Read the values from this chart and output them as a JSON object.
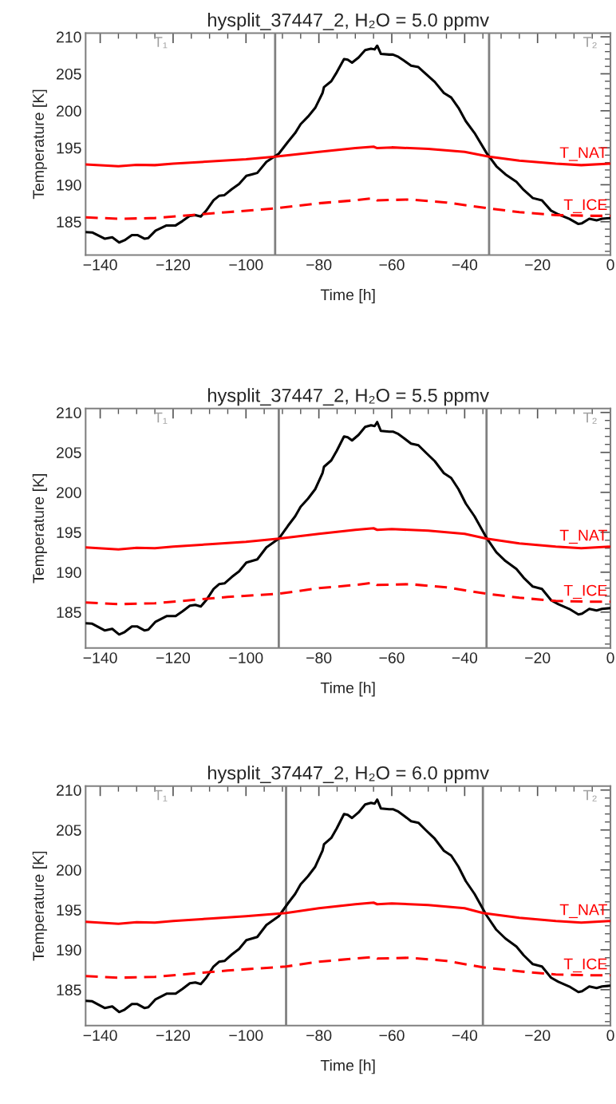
{
  "chart_data": [
    {
      "type": "line",
      "title": "hysplit_37447_2, H₂O = 5.0 ppmv",
      "xlabel": "Time [h]",
      "ylabel": "Temperature [K]",
      "xlim": [
        -144,
        0
      ],
      "ylim": [
        180.5,
        210.5
      ],
      "xticks": [
        {
          "value": -140,
          "label": "−140"
        },
        {
          "value": -120,
          "label": "−120"
        },
        {
          "value": -100,
          "label": "−100"
        },
        {
          "value": -80,
          "label": "−80"
        },
        {
          "value": -60,
          "label": "−60"
        },
        {
          "value": -40,
          "label": "−40"
        },
        {
          "value": -20,
          "label": "−20"
        },
        0
      ],
      "yticks": [
        185,
        190,
        195,
        200,
        205,
        210
      ],
      "grid": false,
      "legend": false,
      "marker": "none",
      "annotations": [
        "T₁",
        "T₂"
      ],
      "ref_lines": [
        {
          "axis": "x",
          "value": -92,
          "color": "#808080"
        },
        {
          "axis": "x",
          "value": -33.3,
          "color": "#808080"
        }
      ],
      "series": [
        {
          "color": "#000000",
          "line_style": "solid",
          "x": [
            -144,
            -142.2,
            -138.7,
            -136.7,
            -134.8,
            -133.3,
            -131.3,
            -129.8,
            -127.8,
            -126.8,
            -124.8,
            -121.8,
            -119.3,
            -117.4,
            -115.4,
            -113.9,
            -112.4,
            -110.9,
            -108.9,
            -107.4,
            -105.9,
            -103.9,
            -101.9,
            -99.9,
            -98.4,
            -96.9,
            -94.4,
            -91,
            -88.5,
            -86.5,
            -85,
            -83,
            -81,
            -79,
            -78.6,
            -76.6,
            -75.1,
            -73.1,
            -72.1,
            -70.9,
            -69.1,
            -67.3,
            -65.7,
            -64.7,
            -64,
            -63,
            -60.7,
            -59.7,
            -58.2,
            -56.7,
            -54.7,
            -52.7,
            -50.7,
            -48.2,
            -45.7,
            -43.7,
            -41.7,
            -39.7,
            -37.3,
            -34,
            -31.3,
            -28.8,
            -25.8,
            -23.8,
            -21.3,
            -18.8,
            -16.3,
            -14.3,
            -11.3,
            -8.8,
            -7.8,
            -5.8,
            -3.8,
            -2.3,
            0
          ],
          "values": [
            183.6,
            183.55,
            182.7,
            182.9,
            182.2,
            182.5,
            183.2,
            183.2,
            182.7,
            182.8,
            183.8,
            184.5,
            184.5,
            185.1,
            185.8,
            185.9,
            185.7,
            186.5,
            187.9,
            188.5,
            188.6,
            189.4,
            190.1,
            191.2,
            191.4,
            191.6,
            193.1,
            194.2,
            195.8,
            197.0,
            198.2,
            199.2,
            200.4,
            202.4,
            203.2,
            204.0,
            205.2,
            207.0,
            206.9,
            206.5,
            207.2,
            208.2,
            208.4,
            208.3,
            208.8,
            207.7,
            207.6,
            207.6,
            207.3,
            206.8,
            206.1,
            205.9,
            205.0,
            203.9,
            202.4,
            201.8,
            200.4,
            198.6,
            197.0,
            194.3,
            192.5,
            191.4,
            190.4,
            189.3,
            188.2,
            187.9,
            186.5,
            186.0,
            185.4,
            184.7,
            184.8,
            185.4,
            185.2,
            185.4,
            185.5
          ]
        },
        {
          "name": "T_NAT",
          "color": "#ff0000",
          "line_style": "solid",
          "x": [
            -144,
            -135,
            -130,
            -125,
            -120,
            -110,
            -100,
            -92,
            -80,
            -70,
            -65,
            -64,
            -60,
            -50,
            -40,
            -33.3,
            -25,
            -15,
            -8,
            0
          ],
          "values": [
            192.75,
            192.5,
            192.7,
            192.65,
            192.85,
            193.15,
            193.45,
            193.8,
            194.45,
            194.95,
            195.15,
            194.95,
            195.05,
            194.85,
            194.45,
            193.8,
            193.25,
            192.85,
            192.65,
            192.85
          ]
        },
        {
          "name": "T_ICE",
          "color": "#ff0000",
          "line_style": "dashed",
          "x": [
            -144,
            -135,
            -125,
            -115,
            -105,
            -92,
            -80,
            -70,
            -65,
            -64,
            -55,
            -45,
            -33.3,
            -25,
            -15,
            -5,
            0
          ],
          "values": [
            185.6,
            185.4,
            185.5,
            185.9,
            186.3,
            186.8,
            187.5,
            187.9,
            188.2,
            187.9,
            188.0,
            187.6,
            186.8,
            186.3,
            185.9,
            185.8,
            185.8
          ]
        }
      ]
    },
    {
      "type": "line",
      "title": "hysplit_37447_2, H₂O = 5.5 ppmv",
      "xlabel": "Time [h]",
      "ylabel": "Temperature [K]",
      "xlim": [
        -144,
        0
      ],
      "ylim": [
        180.5,
        210.5
      ],
      "xticks": [
        {
          "value": -140,
          "label": "−140"
        },
        {
          "value": -120,
          "label": "−120"
        },
        {
          "value": -100,
          "label": "−100"
        },
        {
          "value": -80,
          "label": "−80"
        },
        {
          "value": -60,
          "label": "−60"
        },
        {
          "value": -40,
          "label": "−40"
        },
        {
          "value": -20,
          "label": "−20"
        },
        0
      ],
      "yticks": [
        185,
        190,
        195,
        200,
        205,
        210
      ],
      "grid": false,
      "legend": false,
      "marker": "none",
      "annotations": [
        "T₁",
        "T₂"
      ],
      "ref_lines": [
        {
          "axis": "x",
          "value": -91,
          "color": "#808080"
        },
        {
          "axis": "x",
          "value": -34,
          "color": "#808080"
        }
      ],
      "series": [
        {
          "color": "#000000",
          "line_style": "solid",
          "x": [
            -144,
            -142.2,
            -138.7,
            -136.7,
            -134.8,
            -133.3,
            -131.3,
            -129.8,
            -127.8,
            -126.8,
            -124.8,
            -121.8,
            -119.3,
            -117.4,
            -115.4,
            -113.9,
            -112.4,
            -110.9,
            -108.9,
            -107.4,
            -105.9,
            -103.9,
            -101.9,
            -99.9,
            -98.4,
            -96.9,
            -94.4,
            -91,
            -88.5,
            -86.5,
            -85,
            -83,
            -81,
            -79,
            -78.6,
            -76.6,
            -75.1,
            -73.1,
            -72.1,
            -70.9,
            -69.1,
            -67.3,
            -65.7,
            -64.7,
            -64,
            -63,
            -60.7,
            -59.7,
            -58.2,
            -56.7,
            -54.7,
            -52.7,
            -50.7,
            -48.2,
            -45.7,
            -43.7,
            -41.7,
            -39.7,
            -37.3,
            -34,
            -31.3,
            -28.8,
            -25.8,
            -23.8,
            -21.3,
            -18.8,
            -16.3,
            -14.3,
            -11.3,
            -8.8,
            -7.8,
            -5.8,
            -3.8,
            -2.3,
            0
          ],
          "values": [
            183.6,
            183.55,
            182.7,
            182.9,
            182.2,
            182.5,
            183.2,
            183.2,
            182.7,
            182.8,
            183.8,
            184.5,
            184.5,
            185.1,
            185.8,
            185.9,
            185.7,
            186.5,
            187.9,
            188.5,
            188.6,
            189.4,
            190.1,
            191.2,
            191.4,
            191.6,
            193.1,
            194.2,
            195.8,
            197.0,
            198.2,
            199.2,
            200.4,
            202.4,
            203.2,
            204.0,
            205.2,
            207.0,
            206.9,
            206.5,
            207.2,
            208.2,
            208.4,
            208.3,
            208.8,
            207.7,
            207.6,
            207.6,
            207.3,
            206.8,
            206.1,
            205.9,
            205.0,
            203.9,
            202.4,
            201.8,
            200.4,
            198.6,
            197.0,
            194.3,
            192.5,
            191.4,
            190.4,
            189.3,
            188.2,
            187.9,
            186.5,
            186.0,
            185.4,
            184.7,
            184.8,
            185.4,
            185.2,
            185.4,
            185.5
          ]
        },
        {
          "name": "T_NAT",
          "color": "#ff0000",
          "line_style": "solid",
          "x": [
            -144,
            -135,
            -130,
            -125,
            -120,
            -110,
            -100,
            -91,
            -80,
            -70,
            -65,
            -64,
            -60,
            -50,
            -40,
            -34,
            -25,
            -15,
            -8,
            0
          ],
          "values": [
            193.1,
            192.85,
            193.05,
            193.0,
            193.2,
            193.5,
            193.8,
            194.2,
            194.8,
            195.3,
            195.5,
            195.3,
            195.4,
            195.2,
            194.8,
            194.2,
            193.6,
            193.2,
            193.0,
            193.2
          ]
        },
        {
          "name": "T_ICE",
          "color": "#ff0000",
          "line_style": "dashed",
          "x": [
            -144,
            -135,
            -125,
            -115,
            -105,
            -91,
            -80,
            -70,
            -65,
            -64,
            -55,
            -45,
            -34,
            -25,
            -15,
            -5,
            0
          ],
          "values": [
            186.2,
            186.0,
            186.1,
            186.5,
            186.9,
            187.3,
            188.0,
            188.4,
            188.7,
            188.4,
            188.5,
            188.1,
            187.3,
            186.8,
            186.4,
            186.3,
            186.3
          ]
        }
      ]
    },
    {
      "type": "line",
      "title": "hysplit_37447_2, H₂O = 6.0 ppmv",
      "xlabel": "Time [h]",
      "ylabel": "Temperature [K]",
      "xlim": [
        -144,
        0
      ],
      "ylim": [
        180.5,
        210.5
      ],
      "xticks": [
        {
          "value": -140,
          "label": "−140"
        },
        {
          "value": -120,
          "label": "−120"
        },
        {
          "value": -100,
          "label": "−100"
        },
        {
          "value": -80,
          "label": "−80"
        },
        {
          "value": -60,
          "label": "−60"
        },
        {
          "value": -40,
          "label": "−40"
        },
        {
          "value": -20,
          "label": "−20"
        },
        0
      ],
      "yticks": [
        185,
        190,
        195,
        200,
        205,
        210
      ],
      "grid": false,
      "legend": false,
      "marker": "none",
      "annotations": [
        "T₁",
        "T₂"
      ],
      "ref_lines": [
        {
          "axis": "x",
          "value": -89,
          "color": "#808080"
        },
        {
          "axis": "x",
          "value": -35,
          "color": "#808080"
        }
      ],
      "series": [
        {
          "color": "#000000",
          "line_style": "solid",
          "x": [
            -144,
            -142.2,
            -138.7,
            -136.7,
            -134.8,
            -133.3,
            -131.3,
            -129.8,
            -127.8,
            -126.8,
            -124.8,
            -121.8,
            -119.3,
            -117.4,
            -115.4,
            -113.9,
            -112.4,
            -110.9,
            -108.9,
            -107.4,
            -105.9,
            -103.9,
            -101.9,
            -99.9,
            -98.4,
            -96.9,
            -94.4,
            -91,
            -88.5,
            -86.5,
            -85,
            -83,
            -81,
            -79,
            -78.6,
            -76.6,
            -75.1,
            -73.1,
            -72.1,
            -70.9,
            -69.1,
            -67.3,
            -65.7,
            -64.7,
            -64,
            -63,
            -60.7,
            -59.7,
            -58.2,
            -56.7,
            -54.7,
            -52.7,
            -50.7,
            -48.2,
            -45.7,
            -43.7,
            -41.7,
            -39.7,
            -37.3,
            -34,
            -31.3,
            -28.8,
            -25.8,
            -23.8,
            -21.3,
            -18.8,
            -16.3,
            -14.3,
            -11.3,
            -8.8,
            -7.8,
            -5.8,
            -3.8,
            -2.3,
            0
          ],
          "values": [
            183.6,
            183.55,
            182.7,
            182.9,
            182.2,
            182.5,
            183.2,
            183.2,
            182.7,
            182.8,
            183.8,
            184.5,
            184.5,
            185.1,
            185.8,
            185.9,
            185.7,
            186.5,
            187.9,
            188.5,
            188.6,
            189.4,
            190.1,
            191.2,
            191.4,
            191.6,
            193.1,
            194.2,
            195.8,
            197.0,
            198.2,
            199.2,
            200.4,
            202.4,
            203.2,
            204.0,
            205.2,
            207.0,
            206.9,
            206.5,
            207.2,
            208.2,
            208.4,
            208.3,
            208.8,
            207.7,
            207.6,
            207.6,
            207.3,
            206.8,
            206.1,
            205.9,
            205.0,
            203.9,
            202.4,
            201.8,
            200.4,
            198.6,
            197.0,
            194.3,
            192.5,
            191.4,
            190.4,
            189.3,
            188.2,
            187.9,
            186.5,
            186.0,
            185.4,
            184.7,
            184.8,
            185.4,
            185.2,
            185.4,
            185.5
          ]
        },
        {
          "name": "T_NAT",
          "color": "#ff0000",
          "line_style": "solid",
          "x": [
            -144,
            -135,
            -130,
            -125,
            -120,
            -110,
            -100,
            -89,
            -80,
            -70,
            -65,
            -64,
            -60,
            -50,
            -40,
            -35,
            -25,
            -15,
            -8,
            0
          ],
          "values": [
            193.5,
            193.25,
            193.45,
            193.4,
            193.6,
            193.9,
            194.2,
            194.6,
            195.2,
            195.7,
            195.9,
            195.7,
            195.8,
            195.6,
            195.2,
            194.6,
            194.0,
            193.6,
            193.4,
            193.6
          ]
        },
        {
          "name": "T_ICE",
          "color": "#ff0000",
          "line_style": "dashed",
          "x": [
            -144,
            -135,
            -125,
            -115,
            -105,
            -89,
            -80,
            -70,
            -65,
            -64,
            -55,
            -45,
            -35,
            -25,
            -15,
            -5,
            0
          ],
          "values": [
            186.7,
            186.5,
            186.6,
            187.0,
            187.4,
            187.9,
            188.5,
            188.9,
            189.1,
            188.9,
            189.0,
            188.6,
            187.8,
            187.3,
            186.9,
            186.8,
            186.8
          ]
        }
      ]
    }
  ]
}
